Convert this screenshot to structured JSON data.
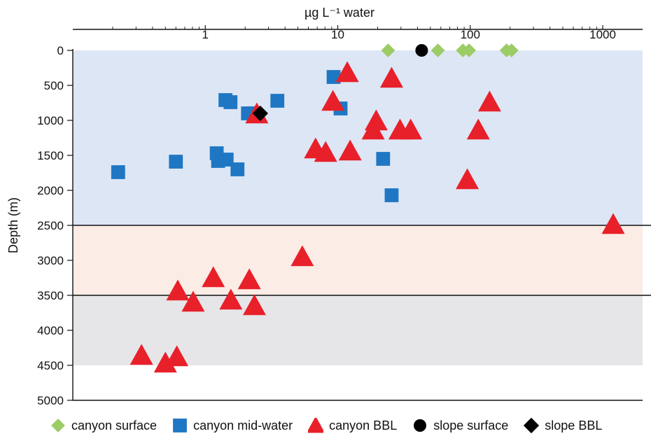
{
  "chart_data": {
    "type": "scatter",
    "title": "",
    "xlabel": "µg L⁻¹ water",
    "ylabel": "Depth (m)",
    "x_scale": "log",
    "xlim": [
      0.1,
      2000
    ],
    "ylim": [
      0,
      5000
    ],
    "y_reversed": true,
    "x_axis_position": "top",
    "x_ticks": [
      {
        "value": 1,
        "label": "1"
      },
      {
        "value": 10,
        "label": "10"
      },
      {
        "value": 100,
        "label": "100"
      },
      {
        "value": 1000,
        "label": "1000"
      }
    ],
    "y_ticks": [
      0,
      500,
      1000,
      1500,
      2000,
      2500,
      3000,
      3500,
      4000,
      4500,
      5000
    ],
    "bands": [
      {
        "from": 0,
        "to": 2500,
        "color": "#dde6f5"
      },
      {
        "from": 2500,
        "to": 3500,
        "color": "#fbece6"
      },
      {
        "from": 3500,
        "to": 4500,
        "color": "#e6e6e8"
      }
    ],
    "legend_position": "bottom",
    "series": [
      {
        "name": "canyon surface",
        "marker": "diamond",
        "color": "#9ccc65",
        "points": [
          [
            24,
            0
          ],
          [
            57,
            0
          ],
          [
            88,
            0
          ],
          [
            98,
            0
          ],
          [
            188,
            0
          ],
          [
            205,
            0
          ]
        ]
      },
      {
        "name": "canyon mid-water",
        "marker": "square",
        "color": "#1f77c4",
        "points": [
          [
            9.3,
            380
          ],
          [
            1.42,
            710
          ],
          [
            1.55,
            740
          ],
          [
            3.5,
            720
          ],
          [
            10.5,
            830
          ],
          [
            2.1,
            900
          ],
          [
            2.3,
            900
          ],
          [
            0.22,
            1740
          ],
          [
            0.6,
            1590
          ],
          [
            1.22,
            1470
          ],
          [
            1.25,
            1580
          ],
          [
            1.45,
            1560
          ],
          [
            1.75,
            1700
          ],
          [
            22,
            1550
          ],
          [
            25.5,
            2070
          ]
        ]
      },
      {
        "name": "canyon BBL",
        "marker": "triangle",
        "color": "#e8202a",
        "points": [
          [
            11.8,
            320
          ],
          [
            25.5,
            400
          ],
          [
            9.2,
            730
          ],
          [
            140,
            740
          ],
          [
            2.45,
            910
          ],
          [
            19.5,
            1010
          ],
          [
            18.5,
            1140
          ],
          [
            29.5,
            1140
          ],
          [
            35.5,
            1140
          ],
          [
            115,
            1140
          ],
          [
            6.8,
            1410
          ],
          [
            8.1,
            1460
          ],
          [
            12.4,
            1440
          ],
          [
            95,
            1850
          ],
          [
            1200,
            2490
          ],
          [
            5.4,
            2950
          ],
          [
            0.62,
            3440
          ],
          [
            1.15,
            3250
          ],
          [
            2.15,
            3280
          ],
          [
            0.81,
            3600
          ],
          [
            1.56,
            3570
          ],
          [
            2.35,
            3650
          ],
          [
            0.33,
            4360
          ],
          [
            0.5,
            4470
          ],
          [
            0.61,
            4380
          ]
        ]
      },
      {
        "name": "slope surface",
        "marker": "circle",
        "color": "#000000",
        "points": [
          [
            43,
            0
          ]
        ]
      },
      {
        "name": "slope BBL",
        "marker": "diamond",
        "color": "#000000",
        "points": [
          [
            2.6,
            900
          ]
        ]
      }
    ]
  }
}
